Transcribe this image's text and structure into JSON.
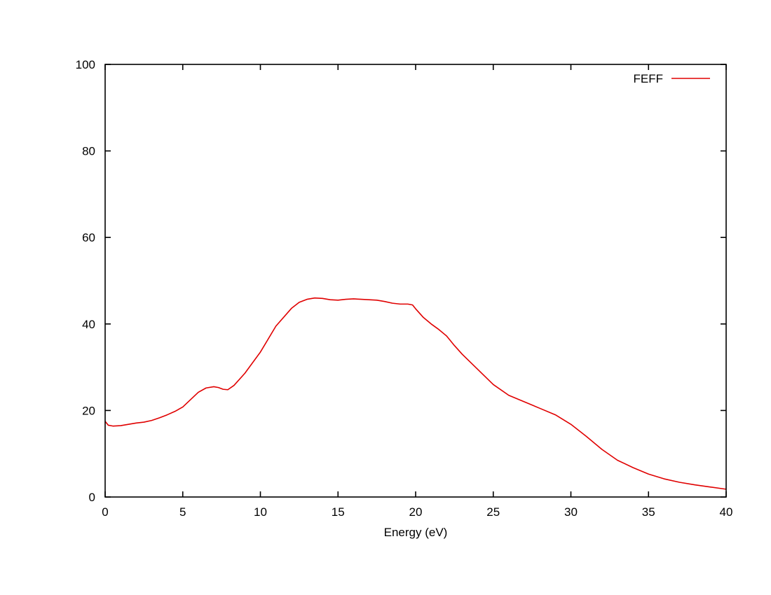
{
  "chart_data": {
    "type": "line",
    "title": "",
    "xlabel": "Energy (eV)",
    "ylabel": "",
    "xlim": [
      0,
      40
    ],
    "ylim": [
      0,
      100
    ],
    "x_ticks": [
      "0",
      "5",
      "10",
      "15",
      "20",
      "25",
      "30",
      "35",
      "40"
    ],
    "y_ticks": [
      "0",
      "20",
      "40",
      "60",
      "80",
      "100"
    ],
    "grid": false,
    "legend_position": "top-right",
    "series": [
      {
        "name": "FEFF",
        "color": "#e00000",
        "x": [
          0,
          0.2,
          0.5,
          1,
          1.5,
          2,
          2.5,
          3,
          3.5,
          4,
          4.5,
          5,
          5.5,
          6,
          6.5,
          7,
          7.3,
          7.6,
          7.9,
          8.3,
          9,
          10,
          11,
          12,
          12.5,
          13,
          13.5,
          14,
          14.5,
          15,
          15.5,
          16,
          16.5,
          17,
          17.5,
          18,
          18.5,
          19,
          19.5,
          19.8,
          20,
          20.5,
          21,
          21.5,
          22,
          22.5,
          23,
          24,
          25,
          26,
          27,
          28,
          29,
          30,
          31,
          32,
          33,
          34,
          35,
          36,
          37,
          38,
          39,
          40
        ],
        "y": [
          17.5,
          16.6,
          16.4,
          16.5,
          16.8,
          17.1,
          17.3,
          17.7,
          18.3,
          19.0,
          19.8,
          20.8,
          22.5,
          24.2,
          25.2,
          25.5,
          25.3,
          24.9,
          24.8,
          25.8,
          28.6,
          33.5,
          39.5,
          43.6,
          45.0,
          45.7,
          46.0,
          45.9,
          45.6,
          45.5,
          45.7,
          45.8,
          45.7,
          45.6,
          45.5,
          45.2,
          44.8,
          44.6,
          44.6,
          44.4,
          43.5,
          41.5,
          40.0,
          38.7,
          37.2,
          35.0,
          33.0,
          29.5,
          26.0,
          23.5,
          22.0,
          20.5,
          19.0,
          16.8,
          14.0,
          11.0,
          8.5,
          6.8,
          5.3,
          4.2,
          3.4,
          2.8,
          2.3,
          1.8
        ]
      }
    ]
  }
}
